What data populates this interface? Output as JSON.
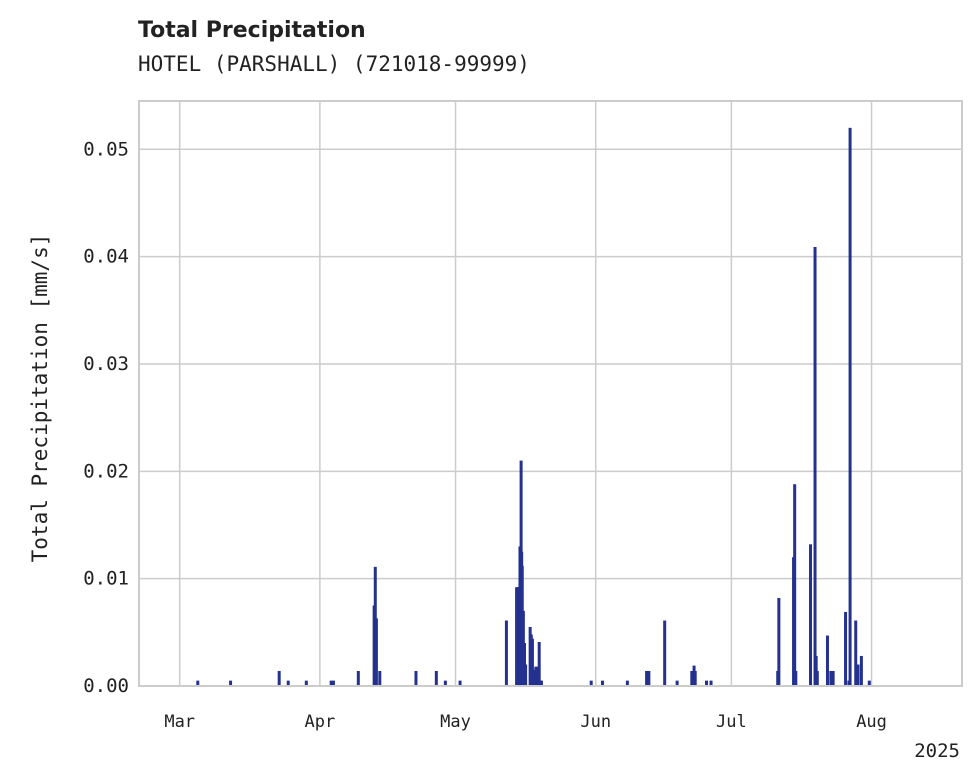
{
  "chart_data": {
    "type": "bar",
    "title": "Total Precipitation",
    "subtitle": "HOTEL (PARSHALL) (721018-99999)",
    "ylabel": "Total Precipitation [mm/s]",
    "xlabel": "",
    "year_label": "2025",
    "xlim": [
      "2025-02-20",
      "2025-08-21"
    ],
    "ylim": [
      0,
      0.0545
    ],
    "yticks": [
      0,
      0.01,
      0.02,
      0.03,
      0.04,
      0.05
    ],
    "ytick_labels": [
      "0.00",
      "0.01",
      "0.02",
      "0.03",
      "0.04",
      "0.05"
    ],
    "xticks": [
      "2025-03-01",
      "2025-04-01",
      "2025-05-01",
      "2025-06-01",
      "2025-07-01",
      "2025-08-01"
    ],
    "xtick_labels": [
      "Mar",
      "Apr",
      "May",
      "Jun",
      "Jul",
      "Aug"
    ],
    "grid": true,
    "color": "#24318f",
    "points": [
      [
        "2025-03-05 00:00",
        0.0005
      ],
      [
        "2025-03-12 06:00",
        0.0005
      ],
      [
        "2025-03-23 00:00",
        0.0014
      ],
      [
        "2025-03-25 00:00",
        0.0005
      ],
      [
        "2025-03-29 00:00",
        0.0005
      ],
      [
        "2025-04-03 12:00",
        0.0005
      ],
      [
        "2025-04-04 00:00",
        0.0005
      ],
      [
        "2025-04-09 12:00",
        0.0014
      ],
      [
        "2025-04-13 00:00",
        0.0075
      ],
      [
        "2025-04-13 06:00",
        0.0111
      ],
      [
        "2025-04-13 12:00",
        0.0063
      ],
      [
        "2025-04-14 06:00",
        0.0014
      ],
      [
        "2025-04-22 06:00",
        0.0014
      ],
      [
        "2025-04-26 18:00",
        0.0014
      ],
      [
        "2025-04-28 18:00",
        0.0005
      ],
      [
        "2025-05-02 00:00",
        0.0005
      ],
      [
        "2025-05-12 06:00",
        0.0061
      ],
      [
        "2025-05-14 12:00",
        0.0092
      ],
      [
        "2025-05-14 18:00",
        0.0092
      ],
      [
        "2025-05-15 00:00",
        0.0092
      ],
      [
        "2025-05-15 06:00",
        0.013
      ],
      [
        "2025-05-15 12:00",
        0.021
      ],
      [
        "2025-05-15 15:00",
        0.0125
      ],
      [
        "2025-05-15 18:00",
        0.0112
      ],
      [
        "2025-05-16 00:00",
        0.007
      ],
      [
        "2025-05-16 06:00",
        0.004
      ],
      [
        "2025-05-16 12:00",
        0.002
      ],
      [
        "2025-05-17 12:00",
        0.0055
      ],
      [
        "2025-05-17 18:00",
        0.0048
      ],
      [
        "2025-05-18 00:00",
        0.0044
      ],
      [
        "2025-05-18 06:00",
        0.0015
      ],
      [
        "2025-05-18 18:00",
        0.0018
      ],
      [
        "2025-05-19 06:00",
        0.0018
      ],
      [
        "2025-05-19 12:00",
        0.0041
      ],
      [
        "2025-05-19 18:00",
        0.0005
      ],
      [
        "2025-05-20 00:00",
        0.0005
      ],
      [
        "2025-05-31 00:00",
        0.0005
      ],
      [
        "2025-06-02 12:00",
        0.0005
      ],
      [
        "2025-06-08 00:00",
        0.0005
      ],
      [
        "2025-06-12 06:00",
        0.0014
      ],
      [
        "2025-06-12 18:00",
        0.0014
      ],
      [
        "2025-06-16 06:00",
        0.0061
      ],
      [
        "2025-06-19 00:00",
        0.0005
      ],
      [
        "2025-06-22 06:00",
        0.0014
      ],
      [
        "2025-06-22 18:00",
        0.0019
      ],
      [
        "2025-06-23 00:00",
        0.0014
      ],
      [
        "2025-06-25 12:00",
        0.0005
      ],
      [
        "2025-06-26 12:00",
        0.0005
      ],
      [
        "2025-07-11 06:00",
        0.0014
      ],
      [
        "2025-07-11 12:00",
        0.0082
      ],
      [
        "2025-07-14 18:00",
        0.012
      ],
      [
        "2025-07-15 00:00",
        0.0188
      ],
      [
        "2025-07-15 06:00",
        0.0014
      ],
      [
        "2025-07-18 12:00",
        0.0132
      ],
      [
        "2025-07-19 12:00",
        0.0409
      ],
      [
        "2025-07-19 18:00",
        0.0028
      ],
      [
        "2025-07-20 00:00",
        0.0014
      ],
      [
        "2025-07-22 06:00",
        0.0047
      ],
      [
        "2025-07-23 00:00",
        0.0014
      ],
      [
        "2025-07-23 12:00",
        0.0014
      ],
      [
        "2025-07-26 06:00",
        0.0069
      ],
      [
        "2025-07-27 00:00",
        0.0005
      ],
      [
        "2025-07-27 06:00",
        0.052
      ],
      [
        "2025-07-28 12:00",
        0.0061
      ],
      [
        "2025-07-29 00:00",
        0.002
      ],
      [
        "2025-07-29 18:00",
        0.0028
      ],
      [
        "2025-07-31 12:00",
        0.0005
      ]
    ]
  }
}
